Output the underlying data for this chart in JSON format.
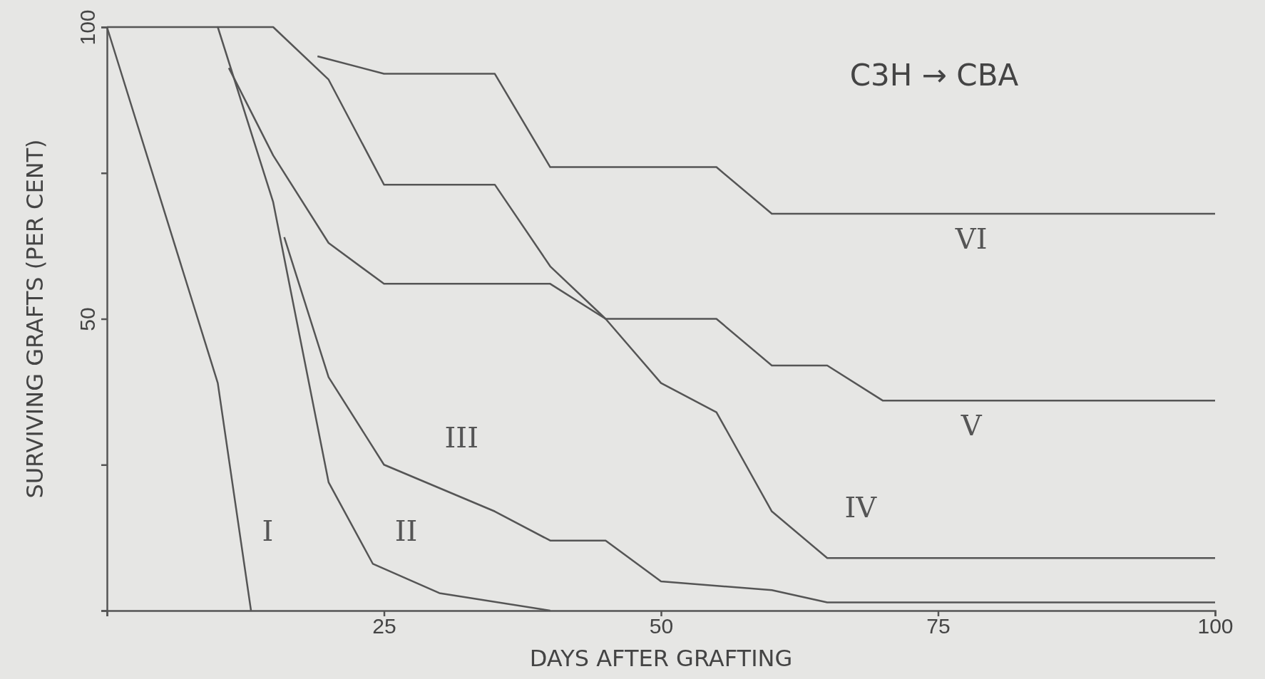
{
  "chart_data": {
    "type": "line",
    "xlabel": "DAYS AFTER GRAFTING",
    "ylabel": "SURVIVING GRAFTS (PER CENT)",
    "annotations": [
      "C3H → CBA"
    ],
    "xlim": [
      0,
      100
    ],
    "ylim": [
      0,
      100
    ],
    "xticks": [
      {
        "value": 0,
        "label": null
      },
      25,
      50,
      75,
      100
    ],
    "yticks": [
      {
        "value": 0,
        "label": null
      },
      {
        "value": 25,
        "label": null
      },
      50,
      {
        "value": 75,
        "label": null
      },
      100
    ],
    "grid": false,
    "legend": false,
    "marker": "none",
    "line_style": "solid",
    "series": [
      {
        "name": "I",
        "color": "#555555",
        "x": [
          0,
          10,
          13
        ],
        "values": [
          100,
          39,
          0
        ]
      },
      {
        "name": "II",
        "color": "#555555",
        "x": [
          0,
          10,
          15,
          20,
          24,
          30,
          40
        ],
        "values": [
          100,
          100,
          70,
          22,
          8,
          3,
          0
        ]
      },
      {
        "name": "III",
        "color": "#555555",
        "x": [
          16,
          20,
          25,
          35,
          40,
          45,
          50,
          60,
          65,
          100
        ],
        "values": [
          64,
          40,
          25,
          17,
          12,
          12,
          5,
          3.5,
          1.4,
          1.4
        ]
      },
      {
        "name": "IV",
        "color": "#555555",
        "x": [
          11,
          15,
          20,
          25,
          40,
          45,
          50,
          55,
          60,
          65,
          100
        ],
        "values": [
          93,
          78,
          63,
          56,
          56,
          50,
          39,
          34,
          17,
          9,
          9
        ]
      },
      {
        "name": "V",
        "color": "#555555",
        "x": [
          10,
          15,
          20,
          25,
          35,
          40,
          45,
          47,
          55,
          60,
          65,
          70,
          100
        ],
        "values": [
          100,
          100,
          91,
          73,
          73,
          59,
          50,
          50,
          50,
          42,
          42,
          36,
          36
        ]
      },
      {
        "name": "VI",
        "color": "#555555",
        "x": [
          19,
          25,
          35,
          40,
          55,
          60,
          100
        ],
        "values": [
          95,
          92,
          92,
          76,
          76,
          68,
          68
        ]
      }
    ]
  }
}
